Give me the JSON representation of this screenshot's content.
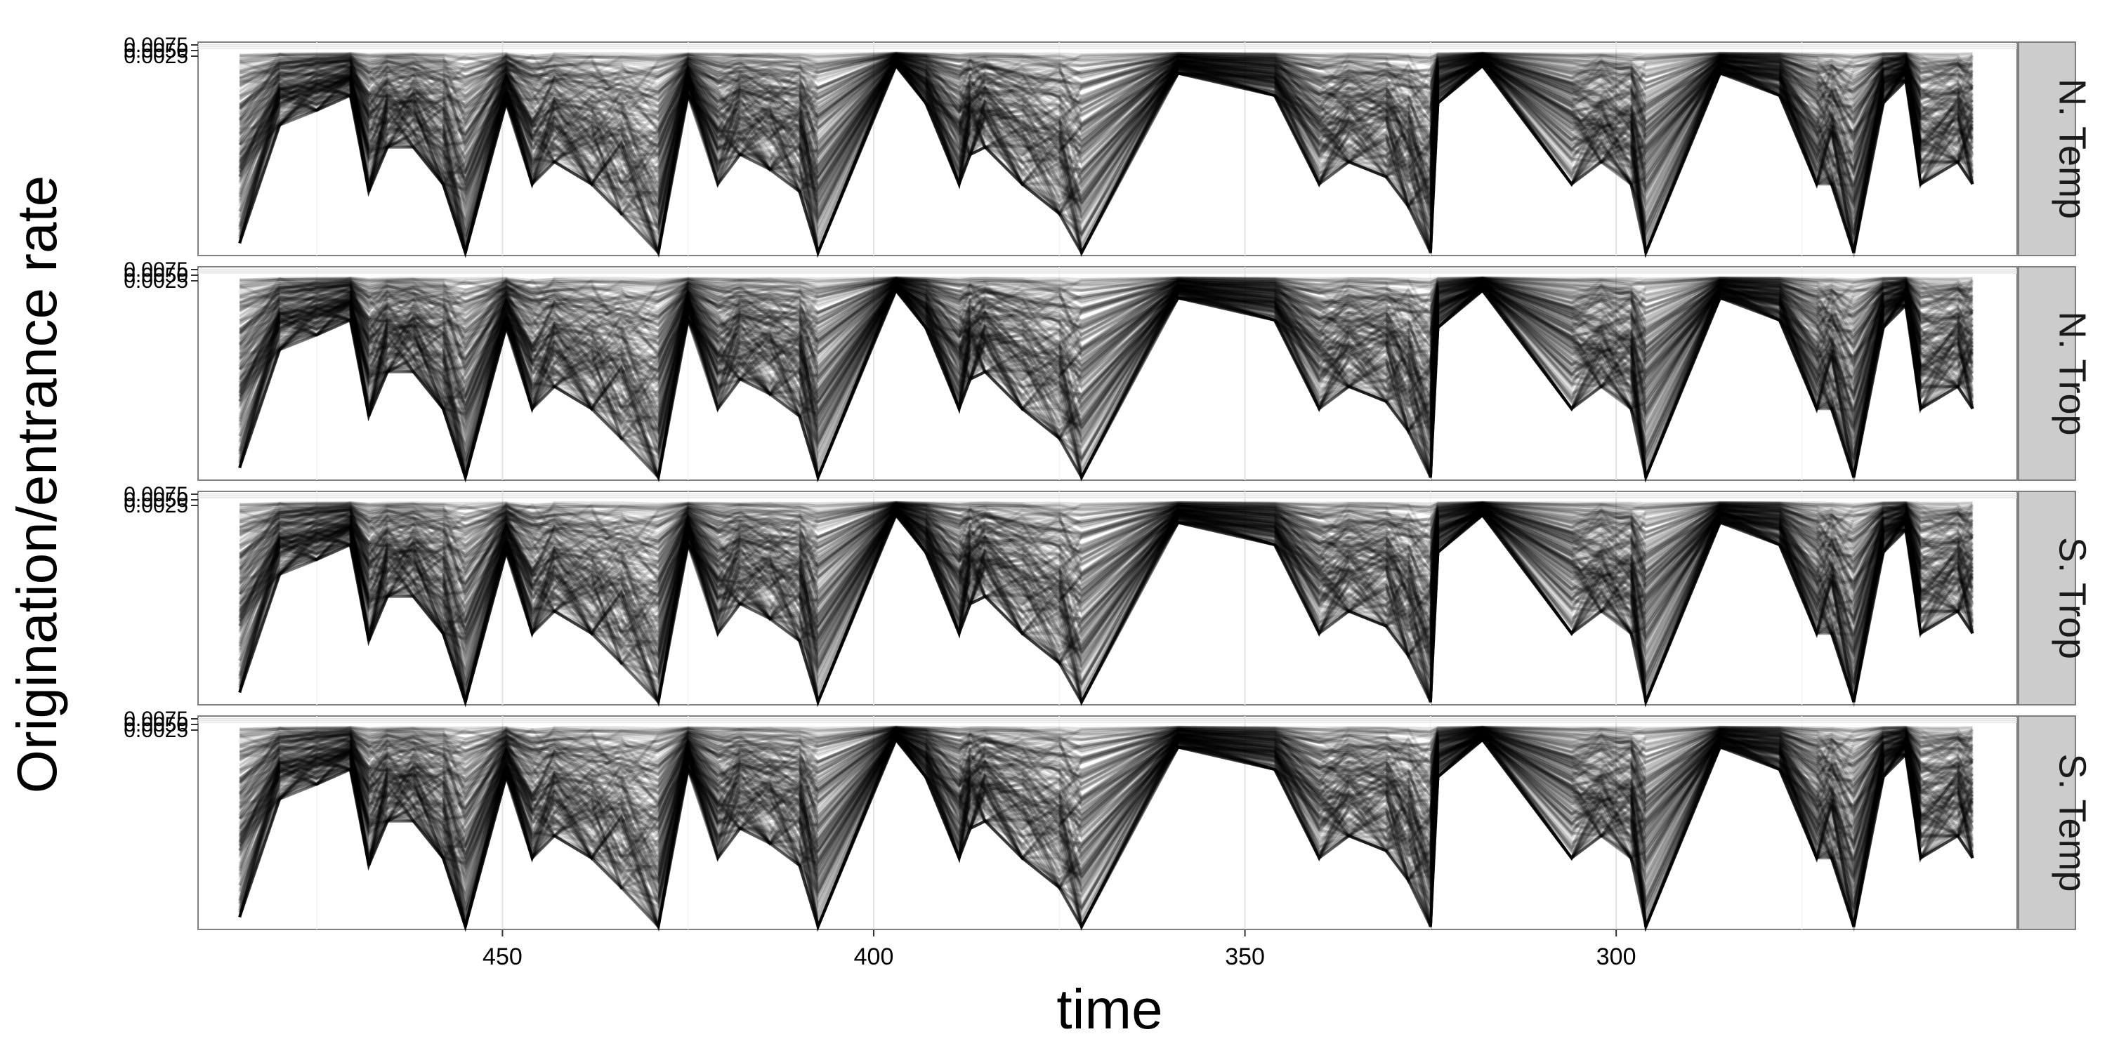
{
  "chart_data": {
    "type": "line",
    "xlabel": "time",
    "ylabel": "Origination/entrance rate",
    "xlim": [
      491,
      246
    ],
    "x_reversed": true,
    "x_ticks": [
      450,
      400,
      350,
      300
    ],
    "x_tick_labels": [
      "450",
      "400",
      "350",
      "300"
    ],
    "ylim": [
      -0.28,
      0.009
    ],
    "y_ticks": [
      0.0025,
      0.005,
      0.0075
    ],
    "y_tick_labels": [
      "0.0025",
      "0.0050",
      "0.0075"
    ],
    "grid": true,
    "line_color": "#000000",
    "line_alpha": 0.12,
    "panels": [
      {
        "label": "N. Temp"
      },
      {
        "label": "N. Trop"
      },
      {
        "label": "S. Trop"
      },
      {
        "label": "S. Temp"
      }
    ],
    "time_points": [
      485.4,
      480.0,
      475.0,
      470.5,
      468.0,
      465.5,
      462.0,
      458.0,
      455.0,
      449.5,
      446.0,
      443.0,
      438.0,
      434.0,
      429.0,
      425.0,
      421.0,
      418.0,
      414.0,
      410.0,
      407.5,
      397.0,
      393.0,
      388.5,
      387.0,
      385.0,
      380.0,
      375.0,
      372.0,
      359.0,
      346.0,
      340.0,
      336.0,
      331.0,
      328.0,
      325.0,
      324.0,
      318.0,
      306.0,
      302.0,
      298.0,
      296.0,
      286.0,
      278.0,
      273.0,
      271.0,
      268.0,
      264.0,
      261.0,
      259.0,
      254.0,
      252.0
    ],
    "series_summary": {
      "upper_envelope": [
        0.0076,
        0.0075,
        0.0076,
        0.0077,
        0.0072,
        0.0074,
        0.0076,
        0.0076,
        0.0075,
        0.0074,
        0.0076,
        0.0077,
        0.0076,
        0.0076,
        0.0077,
        0.0073,
        0.0077,
        0.0076,
        0.0076,
        0.0076,
        0.0075,
        0.0077,
        0.0076,
        0.0076,
        0.0075,
        0.0077,
        0.0077,
        0.0076,
        0.0076,
        0.0077,
        0.0072,
        0.0074,
        0.0075,
        0.0076,
        0.0076,
        0.0075,
        0.0073,
        0.0077,
        0.0076,
        0.0076,
        0.0075,
        0.0074,
        0.0076,
        0.0077,
        0.0076,
        0.0075,
        0.0074,
        0.0076,
        0.0077,
        0.0075,
        0.0074,
        0.0077
      ],
      "lower_envelope": [
        -0.25,
        -0.09,
        -0.07,
        -0.05,
        -0.18,
        -0.12,
        -0.12,
        -0.17,
        -0.27,
        -0.06,
        -0.17,
        -0.14,
        -0.17,
        -0.21,
        -0.27,
        -0.05,
        -0.17,
        -0.13,
        -0.15,
        -0.18,
        -0.27,
        -0.01,
        -0.06,
        -0.17,
        -0.13,
        -0.12,
        -0.17,
        -0.21,
        -0.27,
        -0.02,
        -0.05,
        -0.17,
        -0.14,
        -0.16,
        -0.2,
        -0.27,
        -0.06,
        -0.01,
        -0.17,
        -0.14,
        -0.17,
        -0.27,
        -0.02,
        -0.05,
        -0.17,
        -0.17,
        -0.27,
        -0.06,
        -0.03,
        -0.17,
        -0.14,
        -0.17
      ],
      "n_lines": 220
    }
  }
}
